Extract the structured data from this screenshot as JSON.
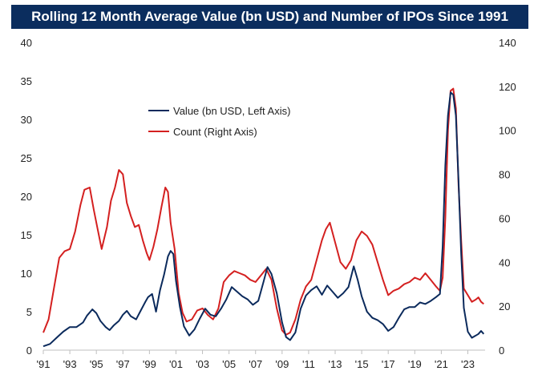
{
  "colors": {
    "title_bg": "#0b2d5e",
    "value": "#0b2a5c",
    "count": "#d42020",
    "axis": "#bfbfbf"
  },
  "chart_data": {
    "type": "line",
    "title": "Rolling 12 Month Average Value (bn USD) and Number of IPOs Since 1991",
    "x_range": [
      1991,
      2024.3
    ],
    "y_left": {
      "range": [
        0,
        40
      ],
      "ticks": [
        "0",
        "5",
        "10",
        "15",
        "20",
        "25",
        "30",
        "35",
        "40"
      ]
    },
    "y_right": {
      "range": [
        0,
        140
      ],
      "ticks": [
        "0",
        "20",
        "40",
        "60",
        "80",
        "100",
        "120",
        "140"
      ]
    },
    "x_ticks": [
      "'91",
      "'93",
      "'95",
      "'97",
      "'99",
      "'01",
      "'03",
      "'05",
      "'07",
      "'09",
      "'11",
      "'13",
      "'15",
      "'17",
      "'19",
      "'21",
      "'23"
    ],
    "legend": [
      "Value (bn USD, Left Axis)",
      "Count (Right Axis)"
    ],
    "series": [
      {
        "name": "Value (bn USD, Left Axis)",
        "axis": "left",
        "x": [
          1991.0,
          1991.5,
          1992.0,
          1992.5,
          1993.0,
          1993.5,
          1994.0,
          1994.3,
          1994.7,
          1995.0,
          1995.3,
          1995.7,
          1996.0,
          1996.3,
          1996.7,
          1997.0,
          1997.3,
          1997.6,
          1998.0,
          1998.3,
          1998.7,
          1998.9,
          1999.2,
          1999.5,
          1999.8,
          2000.1,
          2000.4,
          2000.6,
          2000.8,
          2001.0,
          2001.3,
          2001.6,
          2002.0,
          2002.4,
          2002.8,
          2003.2,
          2003.6,
          2004.0,
          2004.4,
          2004.8,
          2005.2,
          2005.6,
          2006.0,
          2006.4,
          2006.8,
          2007.2,
          2007.6,
          2007.9,
          2008.2,
          2008.6,
          2009.0,
          2009.3,
          2009.6,
          2010.0,
          2010.4,
          2010.8,
          2011.2,
          2011.6,
          2012.0,
          2012.4,
          2012.8,
          2013.2,
          2013.6,
          2014.0,
          2014.4,
          2014.7,
          2015.0,
          2015.4,
          2015.8,
          2016.2,
          2016.6,
          2017.0,
          2017.4,
          2017.8,
          2018.2,
          2018.6,
          2019.0,
          2019.4,
          2019.8,
          2020.2,
          2020.6,
          2020.9,
          2021.1,
          2021.3,
          2021.5,
          2021.7,
          2021.9,
          2022.1,
          2022.3,
          2022.5,
          2022.7,
          2023.0,
          2023.3,
          2023.6,
          2023.8,
          2024.0,
          2024.2
        ],
        "values": [
          0.5,
          0.8,
          1.6,
          2.4,
          3.0,
          3.0,
          3.6,
          4.5,
          5.3,
          4.8,
          3.8,
          3.0,
          2.6,
          3.2,
          3.8,
          4.6,
          5.1,
          4.4,
          4.0,
          5.0,
          6.3,
          6.9,
          7.3,
          5.0,
          7.8,
          9.8,
          12.2,
          12.9,
          12.5,
          9.0,
          5.6,
          3.1,
          1.9,
          2.7,
          4.1,
          5.4,
          4.6,
          4.4,
          5.4,
          6.6,
          8.2,
          7.6,
          7.0,
          6.6,
          5.9,
          6.4,
          8.9,
          10.8,
          9.9,
          7.4,
          3.6,
          1.7,
          1.3,
          2.3,
          5.4,
          7.1,
          7.8,
          8.3,
          7.2,
          8.4,
          7.6,
          6.8,
          7.4,
          8.2,
          10.9,
          9.1,
          7.0,
          5.0,
          4.2,
          3.9,
          3.4,
          2.5,
          3.0,
          4.2,
          5.3,
          5.6,
          5.6,
          6.2,
          6.0,
          6.4,
          6.9,
          7.3,
          13.5,
          24.0,
          30.5,
          33.5,
          33.2,
          30.5,
          22.0,
          12.5,
          5.5,
          2.4,
          1.6,
          1.9,
          2.1,
          2.5,
          2.1
        ]
      },
      {
        "name": "Count (Right Axis)",
        "axis": "right",
        "x": [
          1991.0,
          1991.4,
          1991.8,
          1992.2,
          1992.6,
          1993.0,
          1993.4,
          1993.8,
          1994.1,
          1994.5,
          1994.8,
          1995.1,
          1995.4,
          1995.8,
          1996.1,
          1996.4,
          1996.7,
          1997.0,
          1997.3,
          1997.6,
          1997.9,
          1998.2,
          1998.5,
          1998.8,
          1999.0,
          1999.3,
          1999.6,
          1999.9,
          2000.2,
          2000.4,
          2000.6,
          2000.9,
          2001.2,
          2001.5,
          2001.8,
          2002.2,
          2002.6,
          2003.0,
          2003.4,
          2003.8,
          2004.2,
          2004.6,
          2005.0,
          2005.4,
          2005.8,
          2006.2,
          2006.6,
          2007.0,
          2007.4,
          2007.8,
          2008.2,
          2008.6,
          2009.0,
          2009.3,
          2009.6,
          2010.0,
          2010.4,
          2010.8,
          2011.2,
          2011.6,
          2012.0,
          2012.3,
          2012.6,
          2013.0,
          2013.4,
          2013.8,
          2014.2,
          2014.6,
          2015.0,
          2015.4,
          2015.8,
          2016.2,
          2016.6,
          2017.0,
          2017.4,
          2017.8,
          2018.2,
          2018.6,
          2019.0,
          2019.4,
          2019.8,
          2020.2,
          2020.6,
          2020.9,
          2021.1,
          2021.3,
          2021.5,
          2021.7,
          2021.9,
          2022.1,
          2022.3,
          2022.5,
          2022.7,
          2023.0,
          2023.3,
          2023.6,
          2023.8,
          2024.0,
          2024.2
        ],
        "values": [
          8,
          14,
          28,
          42,
          45,
          46,
          54,
          66,
          73,
          74,
          64,
          55,
          46,
          56,
          68,
          74,
          82,
          80,
          67,
          61,
          56,
          57,
          50,
          44,
          41,
          47,
          55,
          65,
          74,
          72,
          58,
          46,
          26,
          17,
          13,
          14,
          18,
          19,
          16,
          14,
          19,
          31,
          34,
          36,
          35,
          34,
          32,
          31,
          34,
          37,
          32,
          19,
          9,
          7,
          8,
          14,
          23,
          29,
          32,
          41,
          50,
          55,
          58,
          49,
          40,
          37,
          41,
          50,
          54,
          52,
          48,
          40,
          32,
          25,
          27,
          28,
          30,
          31,
          33,
          32,
          35,
          32,
          29,
          27,
          33,
          60,
          100,
          118,
          119,
          110,
          75,
          50,
          28,
          25,
          22,
          23,
          24,
          22,
          21
        ]
      }
    ]
  }
}
